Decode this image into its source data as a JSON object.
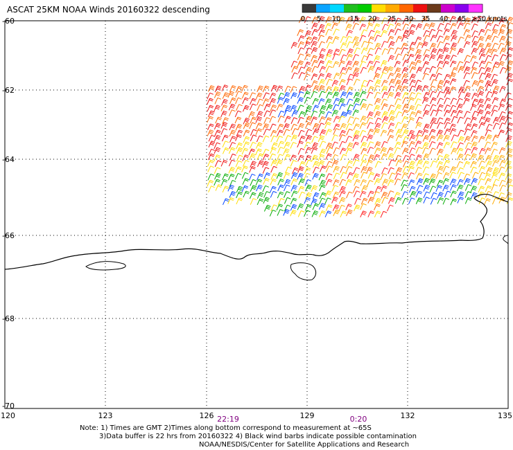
{
  "title": "ASCAT 25KM NOAA Winds 20160322 descending",
  "colors": {
    "grid": "#000000",
    "coast": "#000000",
    "time_label": "#800080"
  },
  "scale": {
    "ticks": [
      "0",
      "5",
      "10",
      "15",
      "20",
      "25",
      "30",
      "35",
      "40",
      "45",
      ">50 knots"
    ],
    "colors": [
      "#3a3a3a",
      "#0aa4ff",
      "#00d8ff",
      "#1fbf1f",
      "#00cc00",
      "#ffdd00",
      "#ffaa00",
      "#ff6600",
      "#ee1111",
      "#6b3a1a",
      "#cc00cc",
      "#8800ee",
      "#ff33ff"
    ]
  },
  "lat_labels": [
    "-60",
    "-62",
    "-64",
    "-66",
    "-68",
    "-70"
  ],
  "lon_labels": [
    "120",
    "123",
    "126",
    "129",
    "132",
    "135"
  ],
  "time_labels": [
    "22:19",
    "0:20"
  ],
  "notes": {
    "line1": "Note: 1) Times are GMT 2)Times along bottom correspond to measurement at ~65S",
    "line2": "3)Data buffer is 22 hrs from 20160322 4) Black wind barbs indicate possible contamination",
    "line3": "NOAA/NESDIS/Center for Satellite Applications and Research"
  }
}
